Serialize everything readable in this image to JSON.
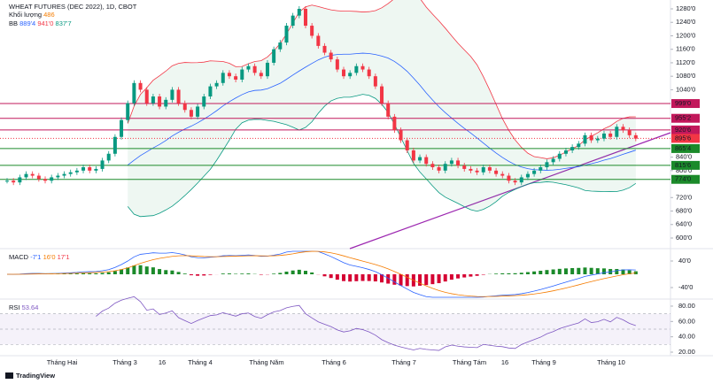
{
  "header": {
    "symbol": "WHEAT FUTURES (DEC 2022), 1D, CBOT",
    "volume_label": "Khối lượng",
    "volume_value": "486",
    "bb_label": "BB",
    "bb_values": [
      "889'4",
      "941'0",
      "837'7"
    ]
  },
  "chart_data": {
    "type": "candlestick",
    "up_color": "#089981",
    "down_color": "#f23645",
    "closes": [
      770,
      765,
      780,
      790,
      785,
      775,
      770,
      780,
      785,
      790,
      795,
      800,
      810,
      800,
      805,
      830,
      850,
      900,
      950,
      1000,
      1060,
      1040,
      1000,
      1020,
      990,
      1010,
      1040,
      1000,
      980,
      960,
      990,
      1020,
      1050,
      1060,
      1090,
      1080,
      1070,
      1100,
      1110,
      1090,
      1080,
      1120,
      1160,
      1180,
      1230,
      1260,
      1280,
      1230,
      1200,
      1170,
      1150,
      1130,
      1100,
      1080,
      1090,
      1110,
      1100,
      1080,
      1050,
      1000,
      960,
      920,
      890,
      860,
      830,
      840,
      820,
      810,
      800,
      820,
      830,
      815,
      805,
      800,
      795,
      810,
      800,
      790,
      785,
      770,
      765,
      780,
      790,
      800,
      810,
      825,
      835,
      850,
      860,
      870,
      880,
      905,
      890,
      895,
      910,
      900,
      930,
      920,
      905,
      895
    ],
    "ylim": [
      600,
      1280
    ],
    "yticks": [
      {
        "value": 1280,
        "label": "1280'0"
      },
      {
        "value": 1240,
        "label": "1240'0"
      },
      {
        "value": 1200,
        "label": "1200'0"
      },
      {
        "value": 1160,
        "label": "1160'0"
      },
      {
        "value": 1120,
        "label": "1120'0"
      },
      {
        "value": 1080,
        "label": "1080'0"
      },
      {
        "value": 1040,
        "label": "1040'0"
      },
      {
        "value": 840,
        "label": "840'0"
      },
      {
        "value": 800,
        "label": "800'0"
      },
      {
        "value": 720,
        "label": "720'0"
      },
      {
        "value": 680,
        "label": "680'0"
      },
      {
        "value": 640,
        "label": "640'0"
      },
      {
        "value": 600,
        "label": "600'0"
      }
    ],
    "levels": [
      {
        "value": 999,
        "label": "999'0",
        "color": "#c2185b"
      },
      {
        "value": 955.2,
        "label": "955'2",
        "color": "#c2185b"
      },
      {
        "value": 920.6,
        "label": "920'6",
        "color": "#c2185b"
      },
      {
        "value": 895.6,
        "label": "895'6",
        "color": "#f23645"
      },
      {
        "value": 865.4,
        "label": "865'4",
        "color": "#1b8a2a"
      },
      {
        "value": 815.6,
        "label": "815'6",
        "color": "#1b8a2a"
      },
      {
        "value": 774,
        "label": "774'0",
        "color": "#1b8a2a"
      }
    ]
  },
  "time_axis": [
    "Tháng Hai",
    "Tháng 3",
    "16",
    "Tháng 4",
    "Tháng Năm",
    "Tháng 6",
    "Tháng 7",
    "Tháng Tám",
    "16",
    "Tháng 9",
    "Tháng 10"
  ],
  "macd": {
    "label": "MACD",
    "values": [
      "-7'1",
      "16'0",
      "17'1"
    ],
    "yticks": [
      {
        "value": 40,
        "label": "40'0"
      },
      {
        "value": -40,
        "label": "-40'0"
      }
    ]
  },
  "rsi": {
    "label": "RSI",
    "value": "53.64",
    "yticks": [
      {
        "value": 80,
        "label": "80.00"
      },
      {
        "value": 60,
        "label": "60.00"
      },
      {
        "value": 40,
        "label": "40.00"
      },
      {
        "value": 20,
        "label": "20.00"
      }
    ]
  },
  "footer": {
    "brand": "TradingView"
  }
}
